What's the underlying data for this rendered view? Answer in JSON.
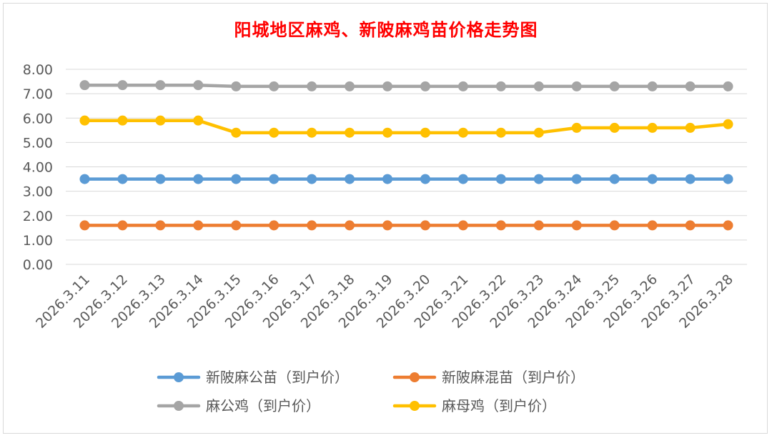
{
  "colors": {
    "title": "#ff0000",
    "grid": "#d9d9d9",
    "text": "#595959"
  },
  "chart_data": {
    "type": "line",
    "title": "阳城地区麻鸡、新陂麻鸡苗价格走势图",
    "xlabel": "",
    "ylabel": "",
    "ylim": [
      0,
      8
    ],
    "yticks": [
      "0.00",
      "1.00",
      "2.00",
      "3.00",
      "4.00",
      "5.00",
      "6.00",
      "7.00",
      "8.00"
    ],
    "grid": true,
    "legend_position": "bottom",
    "x": [
      "2026.3.11",
      "2026.3.12",
      "2026.3.13",
      "2026.3.14",
      "2026.3.15",
      "2026.3.16",
      "2026.3.17",
      "2026.3.18",
      "2026.3.19",
      "2026.3.20",
      "2026.3.21",
      "2026.3.22",
      "2026.3.23",
      "2026.3.24",
      "2026.3.25",
      "2026.3.26",
      "2026.3.27",
      "2026.3.28"
    ],
    "series": [
      {
        "name": "新陂麻公苗（到户价）",
        "color": "#5b9bd5",
        "values": [
          3.5,
          3.5,
          3.5,
          3.5,
          3.5,
          3.5,
          3.5,
          3.5,
          3.5,
          3.5,
          3.5,
          3.5,
          3.5,
          3.5,
          3.5,
          3.5,
          3.5,
          3.5
        ]
      },
      {
        "name": "新陂麻混苗（到户价）",
        "color": "#ed7d31",
        "values": [
          1.6,
          1.6,
          1.6,
          1.6,
          1.6,
          1.6,
          1.6,
          1.6,
          1.6,
          1.6,
          1.6,
          1.6,
          1.6,
          1.6,
          1.6,
          1.6,
          1.6,
          1.6
        ]
      },
      {
        "name": "麻公鸡（到户价）",
        "color": "#a5a5a5",
        "values": [
          7.35,
          7.35,
          7.35,
          7.35,
          7.3,
          7.3,
          7.3,
          7.3,
          7.3,
          7.3,
          7.3,
          7.3,
          7.3,
          7.3,
          7.3,
          7.3,
          7.3,
          7.3
        ]
      },
      {
        "name": "麻母鸡（到户价）",
        "color": "#ffc000",
        "values": [
          5.9,
          5.9,
          5.9,
          5.9,
          5.4,
          5.4,
          5.4,
          5.4,
          5.4,
          5.4,
          5.4,
          5.4,
          5.4,
          5.6,
          5.6,
          5.6,
          5.6,
          5.75
        ]
      }
    ]
  }
}
